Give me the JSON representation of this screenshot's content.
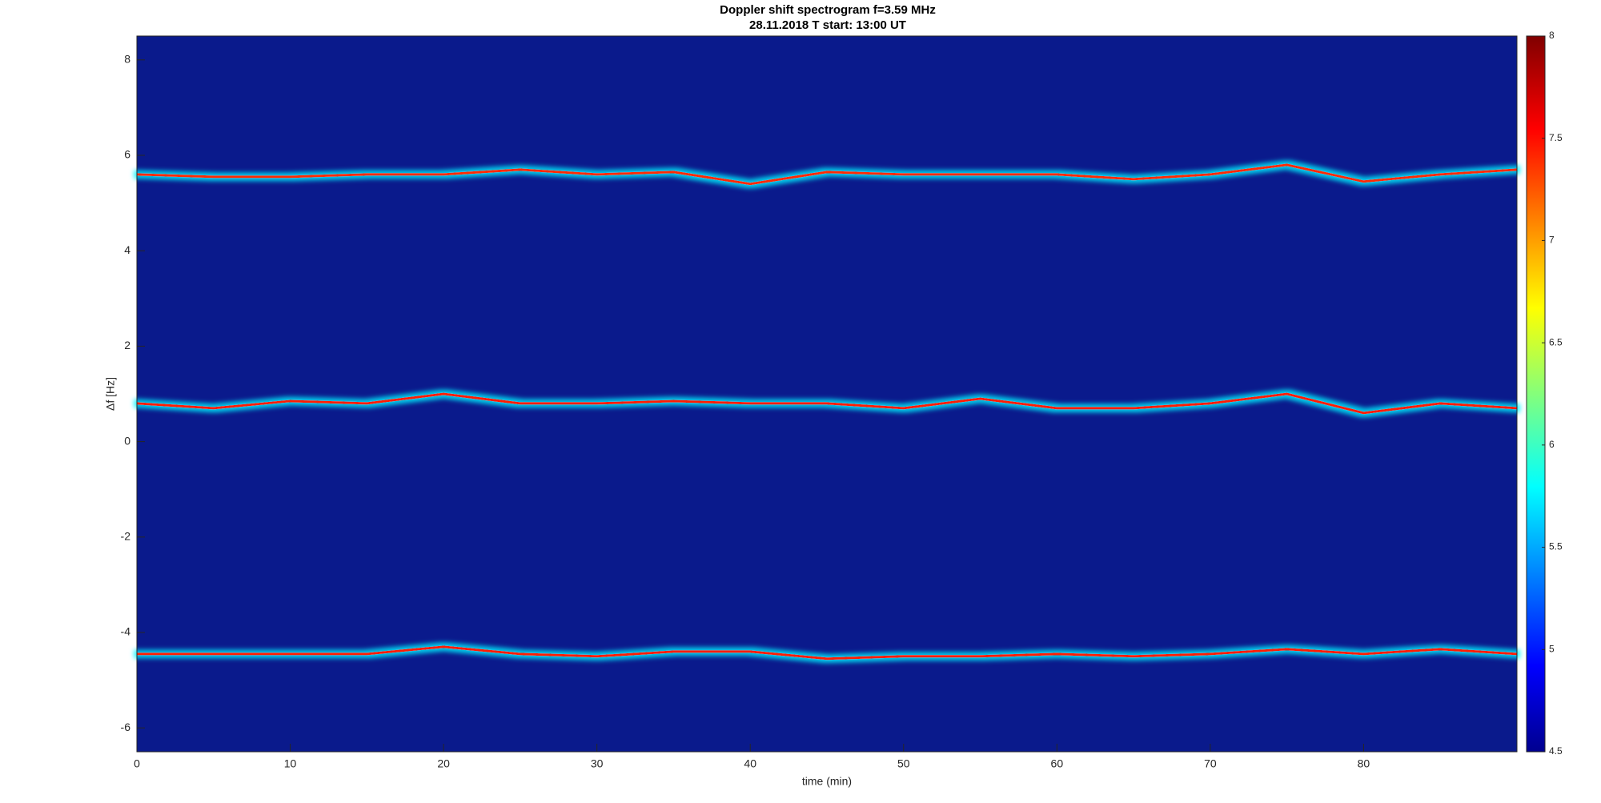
{
  "chart_data": {
    "type": "spectrogram",
    "title": "Doppler shift spectrogram f=3.59 MHz",
    "subtitle": "28.11.2018   T start: 13:00 UT",
    "xlabel": "time (min)",
    "ylabel": "Δf [Hz]",
    "xlim": [
      0,
      90
    ],
    "xticks": [
      0,
      10,
      20,
      30,
      40,
      50,
      60,
      70,
      80
    ],
    "ylim": [
      -6.5,
      8.5
    ],
    "yticks": [
      -6,
      -4,
      -2,
      0,
      2,
      4,
      6,
      8
    ],
    "colormap": "jet",
    "background": "#0a1a8c",
    "clim": [
      4.5,
      8
    ],
    "cticks": [
      4.5,
      5,
      5.5,
      6,
      6.5,
      7,
      7.5,
      8
    ],
    "x": [
      0,
      5,
      10,
      15,
      20,
      25,
      30,
      35,
      40,
      45,
      50,
      55,
      60,
      65,
      70,
      75,
      80,
      85,
      90
    ],
    "series": [
      {
        "color": "#ff2a00",
        "values": [
          5.6,
          5.55,
          5.55,
          5.6,
          5.6,
          5.7,
          5.6,
          5.65,
          5.4,
          5.65,
          5.6,
          5.6,
          5.6,
          5.5,
          5.6,
          5.8,
          5.45,
          5.6,
          5.7
        ]
      },
      {
        "color": "#ff1a00",
        "values": [
          0.8,
          0.7,
          0.85,
          0.8,
          1.0,
          0.8,
          0.8,
          0.85,
          0.8,
          0.8,
          0.7,
          0.9,
          0.7,
          0.7,
          0.8,
          1.0,
          0.6,
          0.8,
          0.7
        ]
      },
      {
        "color": "#ff1a00",
        "values": [
          -4.45,
          -4.45,
          -4.45,
          -4.45,
          -4.3,
          -4.45,
          -4.5,
          -4.4,
          -4.4,
          -4.55,
          -4.5,
          -4.5,
          -4.45,
          -4.5,
          -4.45,
          -4.35,
          -4.45,
          -4.35,
          -4.45
        ]
      }
    ]
  }
}
